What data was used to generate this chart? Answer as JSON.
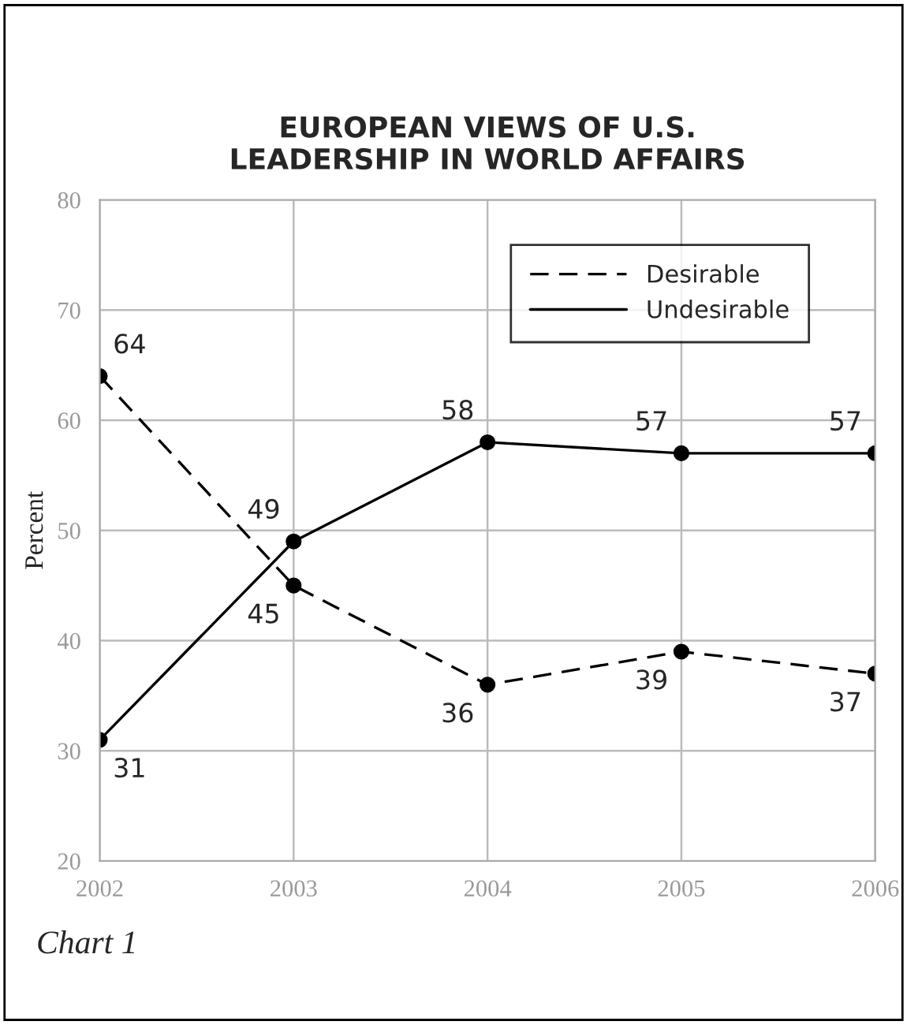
{
  "chart_data": {
    "type": "line",
    "title": "EUROPEAN VIEWS OF U.S.\nLEADERSHIP IN WORLD AFFAIRS",
    "ylabel": "Percent",
    "x": [
      2002,
      2003,
      2004,
      2005,
      2006
    ],
    "series": [
      {
        "name": "Desirable",
        "color": "#000000",
        "line_style": "dashed",
        "values": [
          64,
          45,
          36,
          39,
          37
        ]
      },
      {
        "name": "Undesirable",
        "color": "#000000",
        "line_style": "solid",
        "values": [
          31,
          49,
          58,
          57,
          57
        ]
      }
    ],
    "xlim": [
      2002,
      2006
    ],
    "xticks": [
      2002,
      2003,
      2004,
      2005,
      2006
    ],
    "ylim": [
      20,
      80
    ],
    "yticks": [
      20,
      30,
      40,
      50,
      60,
      70,
      80
    ],
    "grid": true,
    "legend": "top right",
    "marker": "circle",
    "data_labels": true,
    "annotations": [
      "Chart 1"
    ]
  }
}
